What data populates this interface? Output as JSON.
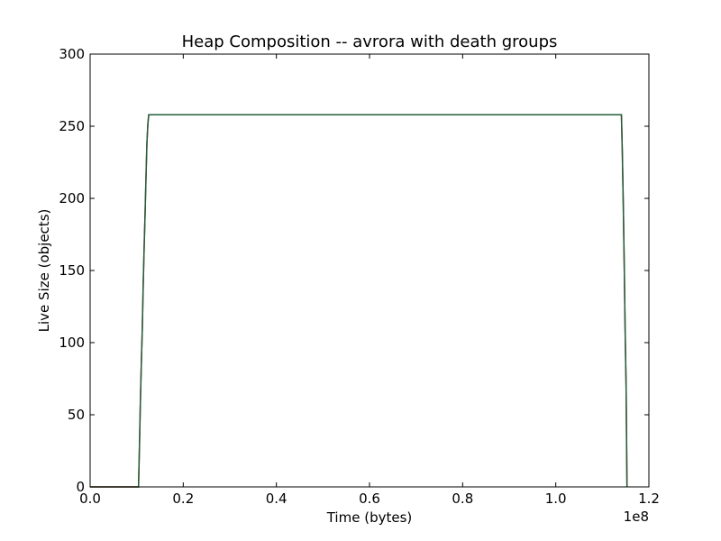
{
  "chart_data": {
    "type": "line",
    "title": "Heap Composition -- avrora with death groups",
    "xlabel": "Time (bytes)",
    "ylabel": "Live Size (objects)",
    "x_scale_label": "1e8",
    "xlim": [
      0.0,
      1.2
    ],
    "ylim": [
      0,
      300
    ],
    "xticks": [
      0.0,
      0.2,
      0.4,
      0.6,
      0.8,
      1.0,
      1.2
    ],
    "xtick_labels": [
      "0.0",
      "0.2",
      "0.4",
      "0.6",
      "0.8",
      "1.0",
      "1.2"
    ],
    "yticks": [
      0,
      50,
      100,
      150,
      200,
      250,
      300
    ],
    "ytick_labels": [
      "0",
      "50",
      "100",
      "150",
      "200",
      "250",
      "300"
    ],
    "grid": false,
    "series": [
      {
        "color": "#d62728",
        "x": [
          0.0,
          0.104,
          0.106,
          0.108,
          0.11,
          0.112,
          0.114,
          0.116,
          0.118,
          0.12,
          0.122,
          0.124,
          0.126,
          1.141,
          1.143,
          1.145,
          1.147,
          1.149,
          1.151,
          1.153
        ],
        "y": [
          0,
          0,
          30,
          60,
          85,
          110,
          140,
          165,
          190,
          215,
          238,
          252,
          258,
          258,
          232,
          195,
          155,
          110,
          70,
          0
        ]
      },
      {
        "color": "#1f5f3a",
        "x": [
          0.0,
          0.104,
          0.106,
          0.108,
          0.11,
          0.112,
          0.114,
          0.116,
          0.118,
          0.12,
          0.122,
          0.124,
          0.126,
          1.141,
          1.143,
          1.145,
          1.147,
          1.149,
          1.151,
          1.153
        ],
        "y": [
          0,
          0,
          30,
          60,
          85,
          110,
          140,
          165,
          190,
          215,
          238,
          252,
          258,
          258,
          232,
          195,
          155,
          110,
          70,
          0
        ]
      }
    ]
  }
}
